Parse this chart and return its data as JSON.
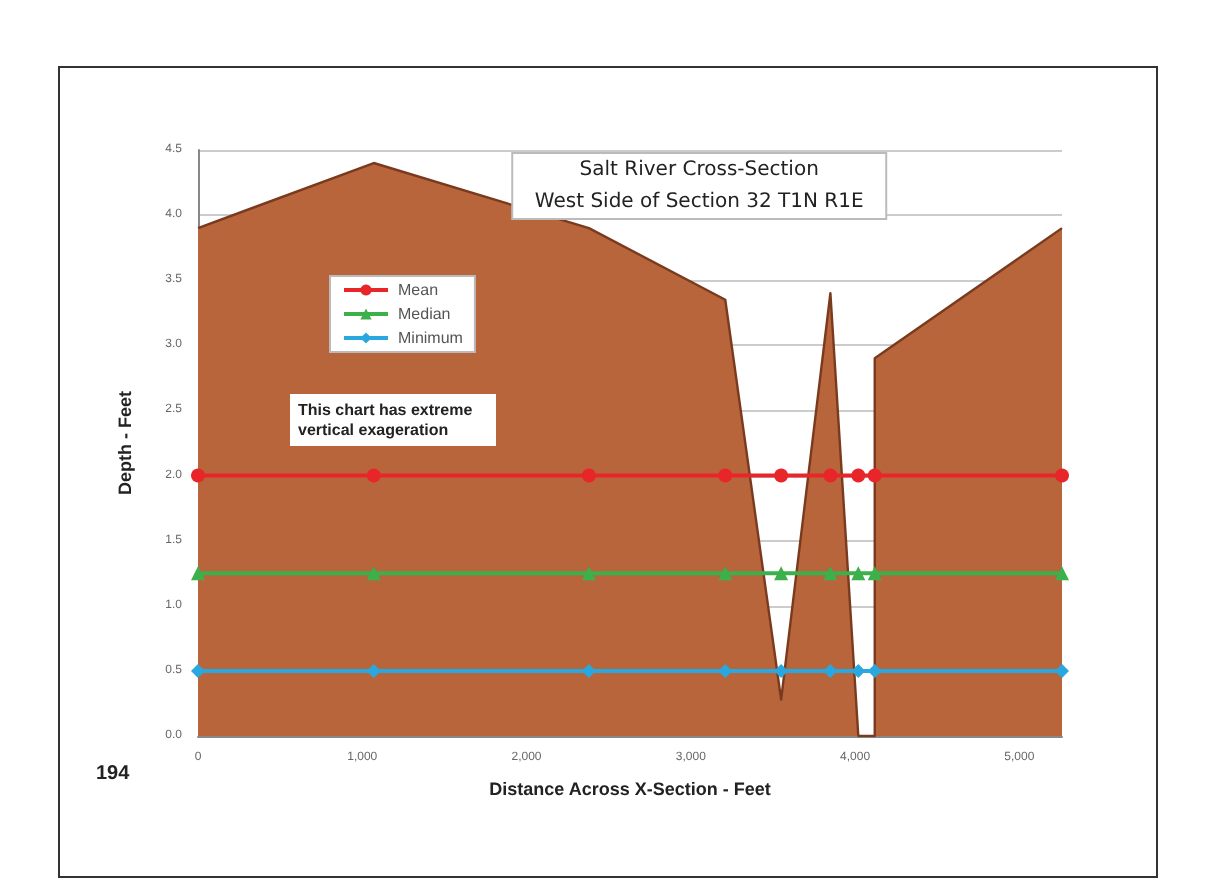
{
  "chart_data": {
    "type": "area",
    "title": "Salt River Cross-Section",
    "subtitle": "West Side of Section 32 T1N R1E",
    "xlabel": "Distance Across X-Section - Feet",
    "ylabel": "Depth - Feet",
    "annotations": [
      "This chart has extreme vertical exageration",
      "194"
    ],
    "x": [
      0,
      1070,
      2380,
      3210,
      3550,
      3850,
      4020,
      4120,
      4120,
      5260
    ],
    "series": [
      {
        "color": "#b8653c",
        "marker": "none",
        "values": [
          3.9,
          4.4,
          3.9,
          3.35,
          0.28,
          3.4,
          0,
          0,
          2.9,
          3.9
        ]
      },
      {
        "type": "line",
        "name": "Mean",
        "color": "#e8262a",
        "marker": "circle",
        "x": [
          0,
          1070,
          2380,
          3210,
          3550,
          3850,
          4020,
          4120,
          5260
        ],
        "values": [
          2,
          2,
          2,
          2,
          2,
          2,
          2,
          2,
          2
        ]
      },
      {
        "type": "line",
        "name": "Median",
        "color": "#3cb04a",
        "marker": "triangle",
        "x": [
          0,
          1070,
          2380,
          3210,
          3550,
          3850,
          4020,
          4120,
          5260
        ],
        "values": [
          1.25,
          1.25,
          1.25,
          1.25,
          1.25,
          1.25,
          1.25,
          1.25,
          1.25
        ]
      },
      {
        "type": "line",
        "name": "Minimum",
        "color": "#29a8e0",
        "marker": "diamond",
        "x": [
          0,
          1070,
          2380,
          3210,
          3550,
          3850,
          4020,
          4120,
          5260
        ],
        "values": [
          0.5,
          0.5,
          0.5,
          0.5,
          0.5,
          0.5,
          0.5,
          0.5,
          0.5
        ]
      }
    ],
    "xlim": [
      0,
      5260
    ],
    "xticks": [
      0,
      {
        "value": 1000,
        "label": "1,000"
      },
      {
        "value": 2000,
        "label": "2,000"
      },
      {
        "value": 3000,
        "label": "3,000"
      },
      {
        "value": 4000,
        "label": "4,000"
      },
      {
        "value": 5000,
        "label": "5,000"
      }
    ],
    "ylim": [
      0,
      4.5
    ],
    "yticks": [
      {
        "value": 0,
        "label": "0.0"
      },
      {
        "value": 0.5,
        "label": "0.5"
      },
      {
        "value": 1,
        "label": "1.0"
      },
      {
        "value": 1.5,
        "label": "1.5"
      },
      {
        "value": 2,
        "label": "2.0"
      },
      {
        "value": 2.5,
        "label": "2.5"
      },
      {
        "value": 3,
        "label": "3.0"
      },
      {
        "value": 3.5,
        "label": "3.5"
      },
      {
        "value": 4,
        "label": "4.0"
      },
      {
        "value": 4.5,
        "label": "4.5"
      }
    ],
    "grid": "y",
    "legend": "top left"
  }
}
